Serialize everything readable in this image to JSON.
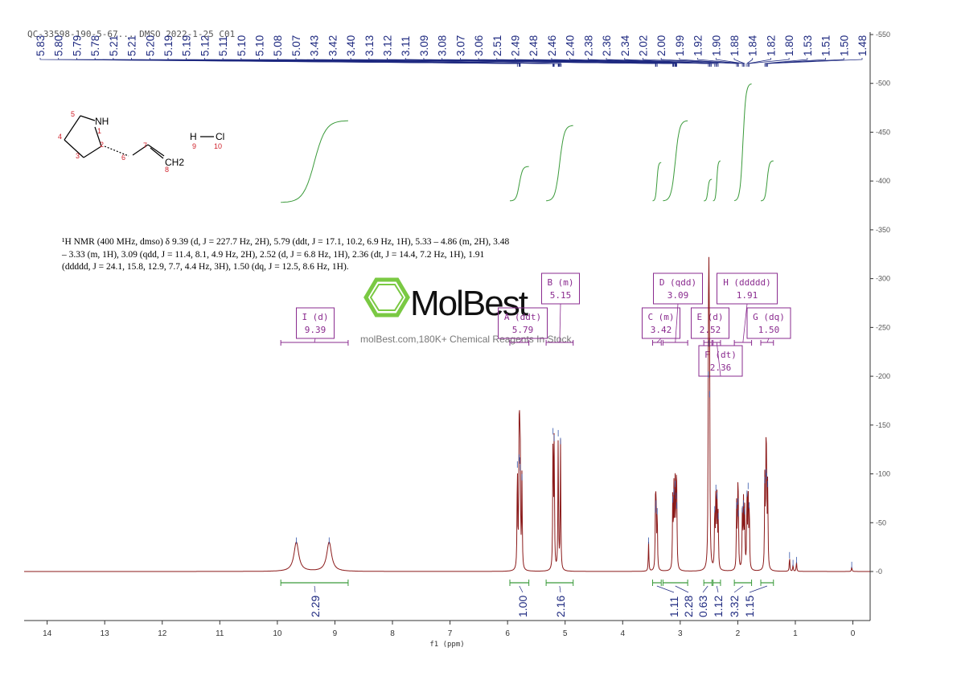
{
  "header_text": "QC-33598-190-5-67... DMSO 2022-1-25 C01",
  "peak_labels": [
    "5.83",
    "5.80",
    "5.79",
    "5.78",
    "5.21",
    "5.21",
    "5.20",
    "5.19",
    "5.19",
    "5.12",
    "5.11",
    "5.10",
    "5.10",
    "5.08",
    "5.07",
    "3.43",
    "3.42",
    "3.40",
    "3.13",
    "3.12",
    "3.11",
    "3.09",
    "3.08",
    "3.07",
    "3.06",
    "2.51",
    "2.49",
    "2.48",
    "2.46",
    "2.40",
    "2.38",
    "2.36",
    "2.34",
    "2.02",
    "2.00",
    "1.99",
    "1.92",
    "1.90",
    "1.88",
    "1.84",
    "1.82",
    "1.80",
    "1.53",
    "1.51",
    "1.50",
    "1.48"
  ],
  "nmr_text": "¹H NMR (400 MHz, dmso) δ 9.39 (d, J = 227.7 Hz, 2H), 5.79 (ddt, J = 17.1, 10.2, 6.9 Hz, 1H), 5.33 – 4.86 (m, 2H), 3.48 – 3.33 (m, 1H), 3.09 (qdd, J = 11.4, 8.1, 4.9 Hz, 2H), 2.52 (d, J = 6.8 Hz, 1H), 2.36 (dt, J = 14.4, 7.2 Hz, 1H), 1.91 (ddddd, J = 24.1, 15.8, 12.9, 7.7, 4.4 Hz, 3H), 1.50 (dq, J = 12.5, 8.6 Hz, 1H).",
  "structure": {
    "atoms": {
      "NH": "NH",
      "H": "H",
      "Cl": "Cl",
      "CH2": "CH2"
    },
    "numbers": [
      "1",
      "2",
      "3",
      "4",
      "5",
      "6",
      "7",
      "8",
      "9",
      "10"
    ]
  },
  "watermark": {
    "brand": "MolBest",
    "subtitle": "molBest.com,180K+ Chemical Reagents In Stock."
  },
  "multiplets": [
    {
      "name": "I (d)",
      "shift": "9.39",
      "range": [
        8.77,
        9.94
      ]
    },
    {
      "name": "A (ddt)",
      "shift": "5.79",
      "range": [
        5.63,
        5.96
      ]
    },
    {
      "name": "B (m)",
      "shift": "5.15",
      "range": [
        4.86,
        5.33
      ]
    },
    {
      "name": "C (m)",
      "shift": "3.42",
      "range": [
        3.33,
        3.48
      ]
    },
    {
      "name": "D (qdd)",
      "shift": "3.09",
      "range": [
        2.87,
        3.3
      ]
    },
    {
      "name": "E (d)",
      "shift": "2.52",
      "range": [
        2.45,
        2.59
      ]
    },
    {
      "name": "F (dt)",
      "shift": "2.36",
      "range": [
        2.3,
        2.43
      ]
    },
    {
      "name": "H (ddddd)",
      "shift": "1.91",
      "range": [
        1.76,
        2.06
      ]
    },
    {
      "name": "G (dq)",
      "shift": "1.50",
      "range": [
        1.38,
        1.6
      ]
    }
  ],
  "colors": {
    "spectrum": "#8b1a1a",
    "integral": "#3a9a3a",
    "peaklabel": "#1f2a80",
    "multiplet": "#8a2b8f"
  },
  "chart_data": {
    "type": "line",
    "xlabel": "f1 (ppm)",
    "xlim": [
      14.4,
      -0.3
    ],
    "ylim": [
      -45,
      555
    ],
    "x_ticks": [
      14,
      13,
      12,
      11,
      10,
      9,
      8,
      7,
      6,
      5,
      4,
      3,
      2,
      1,
      0
    ],
    "y_ticks": [
      0,
      50,
      100,
      150,
      200,
      250,
      300,
      350,
      400,
      450,
      500,
      550
    ],
    "peaks": [
      {
        "x": 9.67,
        "y": 30
      },
      {
        "x": 9.1,
        "y": 30
      },
      {
        "x": 5.83,
        "y": 108
      },
      {
        "x": 5.8,
        "y": 115
      },
      {
        "x": 5.79,
        "y": 112
      },
      {
        "x": 5.78,
        "y": 105
      },
      {
        "x": 5.75,
        "y": 95
      },
      {
        "x": 5.21,
        "y": 142
      },
      {
        "x": 5.19,
        "y": 135
      },
      {
        "x": 5.12,
        "y": 140
      },
      {
        "x": 5.08,
        "y": 132
      },
      {
        "x": 3.55,
        "y": 30
      },
      {
        "x": 3.43,
        "y": 62
      },
      {
        "x": 3.42,
        "y": 68
      },
      {
        "x": 3.4,
        "y": 60
      },
      {
        "x": 3.13,
        "y": 72
      },
      {
        "x": 3.11,
        "y": 80
      },
      {
        "x": 3.09,
        "y": 88
      },
      {
        "x": 3.07,
        "y": 76
      },
      {
        "x": 3.06,
        "y": 66
      },
      {
        "x": 2.51,
        "y": 200
      },
      {
        "x": 2.5,
        "y": 232
      },
      {
        "x": 2.49,
        "y": 180
      },
      {
        "x": 2.4,
        "y": 62
      },
      {
        "x": 2.38,
        "y": 84
      },
      {
        "x": 2.36,
        "y": 76
      },
      {
        "x": 2.34,
        "y": 55
      },
      {
        "x": 2.02,
        "y": 66
      },
      {
        "x": 2.0,
        "y": 70
      },
      {
        "x": 1.99,
        "y": 58
      },
      {
        "x": 1.92,
        "y": 62
      },
      {
        "x": 1.9,
        "y": 68
      },
      {
        "x": 1.88,
        "y": 60
      },
      {
        "x": 1.84,
        "y": 78
      },
      {
        "x": 1.82,
        "y": 86
      },
      {
        "x": 1.8,
        "y": 66
      },
      {
        "x": 1.53,
        "y": 92
      },
      {
        "x": 1.51,
        "y": 100
      },
      {
        "x": 1.5,
        "y": 96
      },
      {
        "x": 1.48,
        "y": 88
      },
      {
        "x": 1.1,
        "y": 15
      },
      {
        "x": 1.04,
        "y": 7
      },
      {
        "x": 0.98,
        "y": 10
      },
      {
        "x": 0.02,
        "y": 5
      }
    ],
    "integrals": [
      {
        "value": "2.29",
        "range": [
          8.77,
          9.94
        ]
      },
      {
        "value": "1.00",
        "range": [
          5.63,
          5.96
        ]
      },
      {
        "value": "2.16",
        "range": [
          4.86,
          5.33
        ]
      },
      {
        "value": "1.11",
        "range": [
          3.33,
          3.48
        ]
      },
      {
        "value": "2.28",
        "range": [
          2.87,
          3.3
        ]
      },
      {
        "value": "0.63",
        "range": [
          2.45,
          2.59
        ]
      },
      {
        "value": "1.12",
        "range": [
          2.3,
          2.43
        ]
      },
      {
        "value": "3.32",
        "range": [
          1.76,
          2.06
        ]
      },
      {
        "value": "1.15",
        "range": [
          1.38,
          1.6
        ]
      }
    ]
  }
}
